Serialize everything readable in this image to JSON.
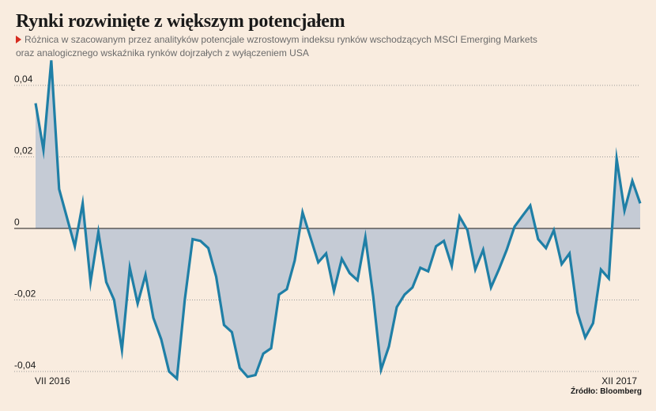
{
  "chart_data": {
    "type": "area",
    "title": "Rynki rozwinięte z większym potencjałem",
    "subtitle_lines": [
      "Różnica w szacowanym przez analityków potencjale wzrostowym indeksu rynków wschodzących MSCI Emerging Markets",
      "oraz analogicznego wskaźnika rynków dojrzałych z wyłączeniem USA"
    ],
    "xlabel": "",
    "ylabel": "",
    "x_tick_labels": [
      "VII 2016",
      "XII 2017"
    ],
    "y_ticks": [
      {
        "value": 0.04,
        "label": "0,04"
      },
      {
        "value": 0.02,
        "label": "0,02"
      },
      {
        "value": 0,
        "label": "0"
      },
      {
        "value": -0.02,
        "label": "-0,02"
      },
      {
        "value": -0.04,
        "label": "-0,04"
      }
    ],
    "ylim": [
      -0.04,
      0.04
    ],
    "grid": "dotted horizontal",
    "line_color": "#1f7fa6",
    "fill_color": "#c5cbd5",
    "zero_line_color": "#1a1a1a",
    "series": [
      {
        "values": [
          0.035,
          0.022,
          0.047,
          0.011,
          0.003,
          -0.005,
          0.007,
          -0.015,
          -0.001,
          -0.015,
          -0.02,
          -0.034,
          -0.011,
          -0.021,
          -0.013,
          -0.025,
          -0.031,
          -0.04,
          -0.042,
          -0.02,
          -0.003,
          -0.0035,
          -0.0055,
          -0.0135,
          -0.027,
          -0.029,
          -0.039,
          -0.0415,
          -0.041,
          -0.035,
          -0.0335,
          -0.0185,
          -0.017,
          -0.009,
          0.0045,
          -0.0025,
          -0.0095,
          -0.007,
          -0.0175,
          -0.0085,
          -0.0125,
          -0.0145,
          -0.0025,
          -0.019,
          -0.0395,
          -0.033,
          -0.022,
          -0.0185,
          -0.0165,
          -0.011,
          -0.012,
          -0.005,
          -0.0035,
          -0.0105,
          0.0033,
          -0.0005,
          -0.0115,
          -0.006,
          -0.0165,
          -0.0115,
          -0.006,
          0.0005,
          0.0035,
          0.0064,
          -0.003,
          -0.0055,
          -0.0005,
          -0.01,
          -0.007,
          -0.0235,
          -0.0305,
          -0.0265,
          -0.0115,
          -0.014,
          0.0195,
          0.005,
          0.0133,
          0.007
        ]
      }
    ]
  },
  "source": "Źródło: Bloomberg"
}
